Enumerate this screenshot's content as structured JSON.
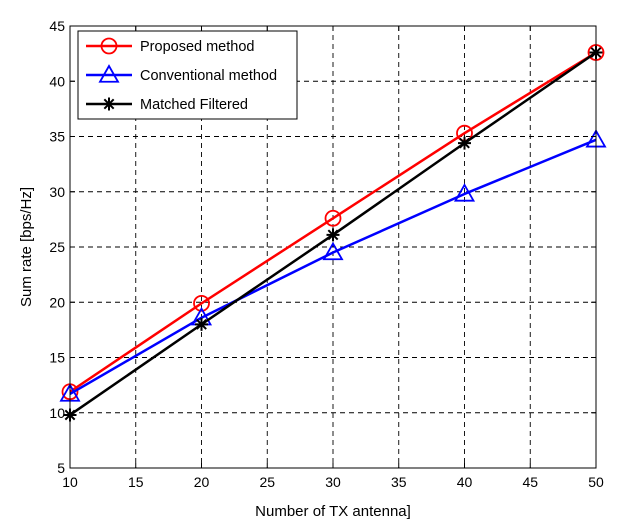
{
  "chart_data": {
    "type": "line",
    "title": "",
    "xlabel": "Number of TX antenna]",
    "ylabel": "Sum rate [bps/Hz]",
    "xlim": [
      10,
      50
    ],
    "ylim": [
      5,
      45
    ],
    "xticks": [
      10,
      15,
      20,
      25,
      30,
      35,
      40,
      45,
      50
    ],
    "yticks": [
      5,
      10,
      15,
      20,
      25,
      30,
      35,
      40,
      45
    ],
    "grid": true,
    "grid_style": "dashed",
    "legend_position": "top-left",
    "x": [
      10,
      20,
      30,
      40,
      50
    ],
    "series": [
      {
        "name": "Proposed method",
        "values": [
          11.9,
          19.9,
          27.6,
          35.3,
          42.6
        ],
        "color": "#ff0000",
        "marker": "circle"
      },
      {
        "name": "Conventional method",
        "values": [
          11.7,
          18.6,
          24.5,
          29.8,
          34.7
        ],
        "color": "#0000ff",
        "marker": "triangle"
      },
      {
        "name": "Matched Filtered",
        "values": [
          9.8,
          18.0,
          26.1,
          34.4,
          42.6
        ],
        "color": "#000000",
        "marker": "star"
      }
    ]
  }
}
